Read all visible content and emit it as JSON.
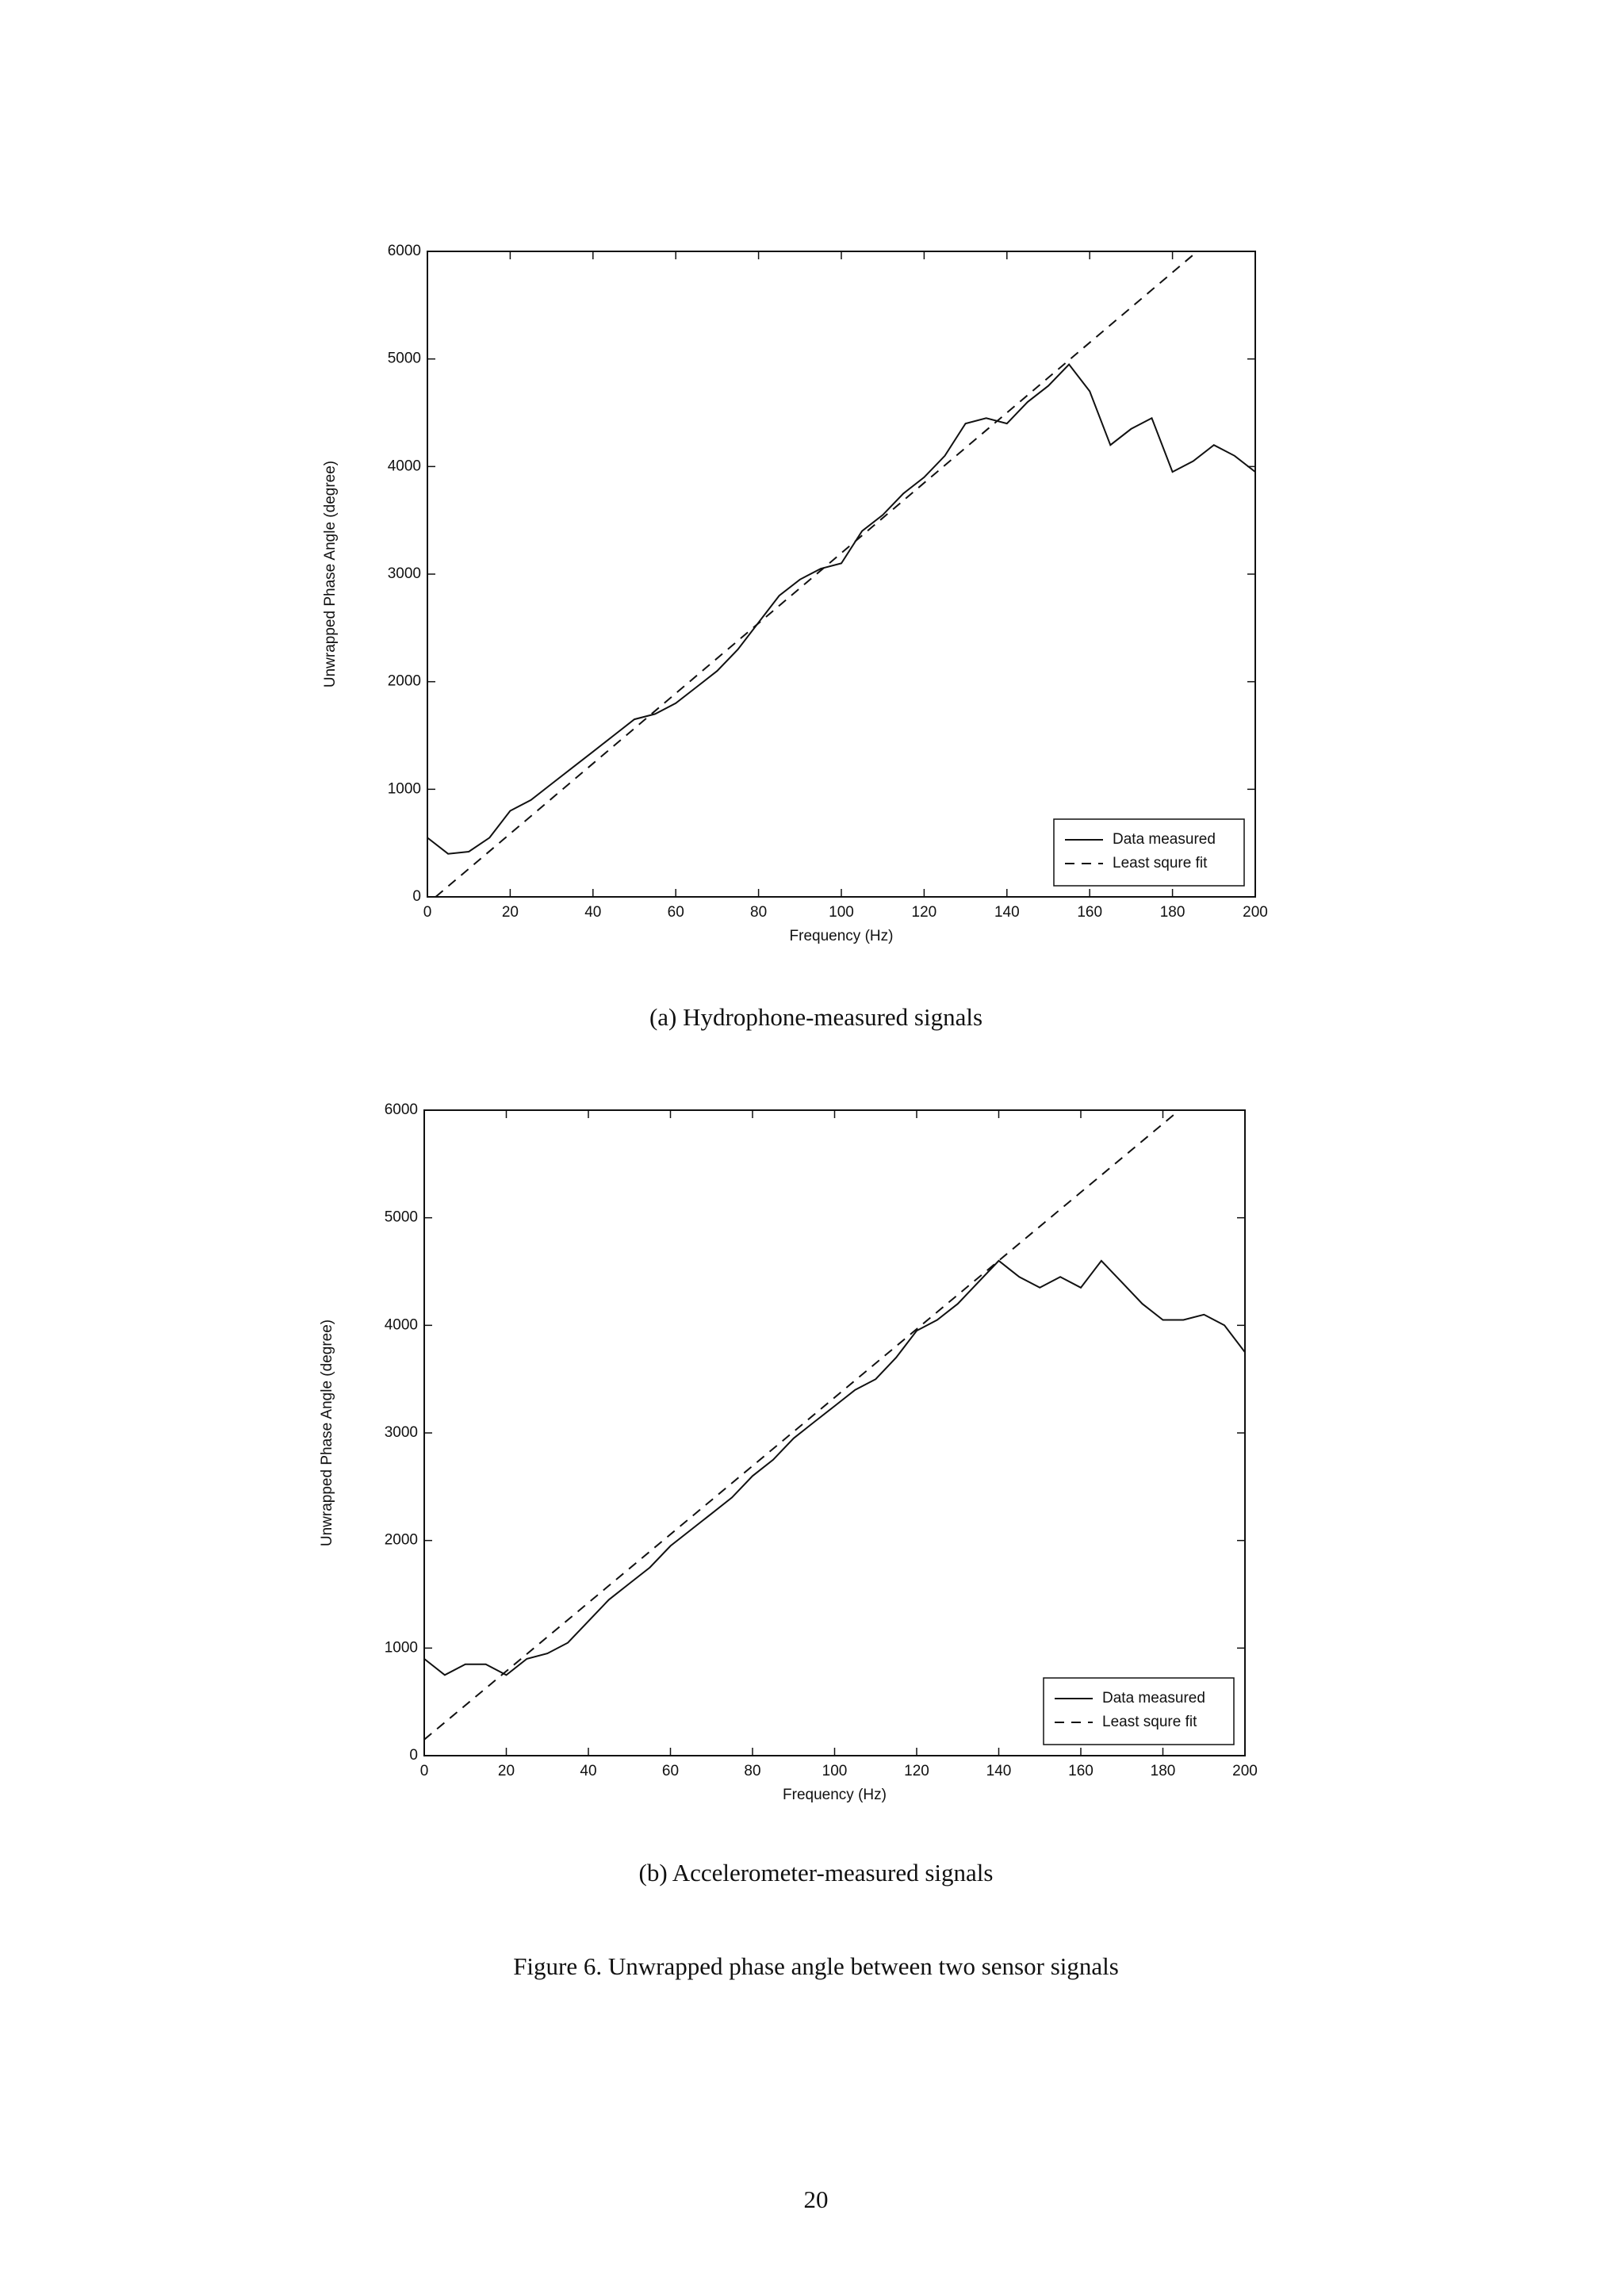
{
  "chart_data": [
    {
      "type": "line",
      "caption": "(a) Hydrophone-measured signals",
      "xlabel": "Frequency (Hz)",
      "ylabel": "Unwrapped Phase Angle (degree)",
      "xlim": [
        0,
        200
      ],
      "xticks": [
        0,
        20,
        40,
        60,
        80,
        100,
        120,
        140,
        160,
        180,
        200
      ],
      "ylim": [
        0,
        6000
      ],
      "yticks": [
        0,
        1000,
        2000,
        3000,
        4000,
        5000,
        6000
      ],
      "legend": "lower right",
      "series": [
        {
          "name": "Data measured",
          "color": "#111111",
          "line_style": "solid",
          "x": [
            0,
            5,
            10,
            15,
            20,
            25,
            30,
            35,
            40,
            45,
            50,
            55,
            60,
            65,
            70,
            75,
            80,
            85,
            90,
            95,
            100,
            105,
            110,
            115,
            120,
            125,
            130,
            135,
            140,
            145,
            150,
            155,
            160,
            165,
            170,
            175,
            180,
            185,
            190,
            195,
            200
          ],
          "values": [
            550,
            400,
            420,
            550,
            800,
            900,
            1050,
            1200,
            1350,
            1500,
            1650,
            1700,
            1800,
            1950,
            2100,
            2300,
            2550,
            2800,
            2950,
            3050,
            3100,
            3400,
            3550,
            3750,
            3900,
            4100,
            4400,
            4450,
            4400,
            4600,
            4750,
            4950,
            4700,
            4200,
            4350,
            4450,
            3950,
            4050,
            4200,
            4100,
            3950
          ]
        },
        {
          "name": "Least squre fit",
          "color": "#111111",
          "line_style": "dashed",
          "x": [
            2,
            186
          ],
          "values": [
            0,
            6000
          ]
        }
      ]
    },
    {
      "type": "line",
      "caption": "(b) Accelerometer-measured signals",
      "xlabel": "Frequency (Hz)",
      "ylabel": "Unwrapped Phase Angle (degree)",
      "xlim": [
        0,
        200
      ],
      "xticks": [
        0,
        20,
        40,
        60,
        80,
        100,
        120,
        140,
        160,
        180,
        200
      ],
      "ylim": [
        0,
        6000
      ],
      "yticks": [
        0,
        1000,
        2000,
        3000,
        4000,
        5000,
        6000
      ],
      "legend": "lower right",
      "series": [
        {
          "name": "Data measured",
          "color": "#111111",
          "line_style": "solid",
          "x": [
            0,
            5,
            10,
            15,
            20,
            25,
            30,
            35,
            40,
            45,
            50,
            55,
            60,
            65,
            70,
            75,
            80,
            85,
            90,
            95,
            100,
            105,
            110,
            115,
            120,
            125,
            130,
            135,
            140,
            145,
            150,
            155,
            160,
            165,
            170,
            175,
            180,
            185,
            190,
            195,
            200
          ],
          "values": [
            900,
            750,
            850,
            850,
            750,
            900,
            950,
            1050,
            1250,
            1450,
            1600,
            1750,
            1950,
            2100,
            2250,
            2400,
            2600,
            2750,
            2950,
            3100,
            3250,
            3400,
            3500,
            3700,
            3950,
            4050,
            4200,
            4400,
            4600,
            4450,
            4350,
            4450,
            4350,
            4600,
            4400,
            4200,
            4050,
            4050,
            4100,
            4000,
            3750
          ]
        },
        {
          "name": "Least squre fit",
          "color": "#111111",
          "line_style": "dashed",
          "x": [
            0,
            184
          ],
          "values": [
            150,
            6000
          ]
        }
      ]
    }
  ],
  "figure_caption": "Figure 6. Unwrapped phase angle between two sensor signals",
  "page_number": "20"
}
